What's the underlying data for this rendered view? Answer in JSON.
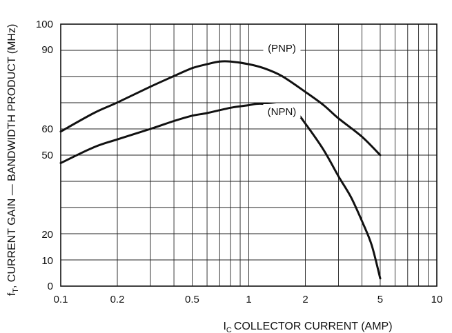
{
  "chart_data": {
    "type": "line",
    "xlabel": "COLLECTOR CURRENT (AMP)",
    "xlabel_symbol": "I",
    "xlabel_sub": "C",
    "ylabel_symbol": "f",
    "ylabel_sub": "T",
    "ylabel": ", CURRENT GAIN — BANDWIDTH PRODUCT (MHz)",
    "x_scale": "log",
    "xlim": [
      0.1,
      10
    ],
    "ylim": [
      0,
      100
    ],
    "y_scale": "nonlinear (tick labels unevenly spaced)",
    "grid": true,
    "x_ticks": [
      {
        "value": 0.1,
        "label": "0.1"
      },
      {
        "value": 0.2,
        "label": "0.2"
      },
      {
        "value": 0.5,
        "label": "0.5"
      },
      {
        "value": 1,
        "label": "1"
      },
      {
        "value": 2,
        "label": "2"
      },
      {
        "value": 5,
        "label": "5"
      },
      {
        "value": 10,
        "label": "10"
      }
    ],
    "y_ticks": [
      {
        "value": 0,
        "label": "0"
      },
      {
        "value": 10,
        "label": "10"
      },
      {
        "value": 20,
        "label": "20"
      },
      {
        "value": 50,
        "label": "50"
      },
      {
        "value": 60,
        "label": "60"
      },
      {
        "value": 90,
        "label": "90"
      },
      {
        "value": 100,
        "label": "100"
      }
    ],
    "series": [
      {
        "name": "(PNP)",
        "x": [
          0.1,
          0.15,
          0.2,
          0.3,
          0.4,
          0.5,
          0.6,
          0.7,
          0.8,
          1.0,
          1.2,
          1.5,
          2.0,
          2.5,
          3.0,
          4.0,
          5.0
        ],
        "y": [
          59,
          66,
          70,
          76,
          80,
          83,
          84.5,
          85.5,
          85.5,
          84.5,
          83,
          80,
          74,
          69,
          64,
          57,
          50
        ]
      },
      {
        "name": "(NPN)",
        "x": [
          0.1,
          0.15,
          0.2,
          0.3,
          0.4,
          0.5,
          0.6,
          0.8,
          1.0,
          1.1,
          1.2,
          1.4,
          1.6,
          1.8,
          2.0,
          2.5,
          3.0,
          3.5,
          4.0,
          4.5,
          5.0
        ],
        "y": [
          47,
          53,
          56,
          60,
          63,
          65,
          66,
          68,
          69,
          69.5,
          69.5,
          69,
          68,
          66,
          62,
          52,
          42,
          34,
          25,
          16,
          3
        ]
      }
    ]
  }
}
